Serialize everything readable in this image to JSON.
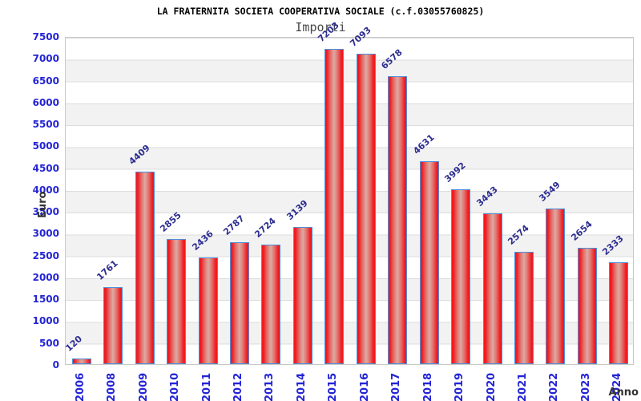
{
  "header": {
    "title": "LA FRATERNITA SOCIETA COOPERATIVA SOCIALE (c.f.03055760825)",
    "subtitle": "Importi"
  },
  "chart_data": {
    "type": "bar",
    "title": "LA FRATERNITA SOCIETA COOPERATIVA SOCIALE (c.f.03055760825)",
    "subtitle": "Importi",
    "xlabel": "Anno",
    "ylabel": "Euro",
    "categories": [
      "2006",
      "2008",
      "2009",
      "2010",
      "2011",
      "2012",
      "2013",
      "2014",
      "2015",
      "2016",
      "2017",
      "2018",
      "2019",
      "2020",
      "2021",
      "2022",
      "2023",
      "2024"
    ],
    "values": [
      120,
      1761,
      4409,
      2855,
      2436,
      2787,
      2724,
      3139,
      7203,
      7093,
      6578,
      4631,
      3992,
      3443,
      2574,
      3549,
      2654,
      2333
    ],
    "ylim": [
      0,
      7500
    ],
    "ytick_step": 500,
    "yticks": [
      0,
      500,
      1000,
      1500,
      2000,
      2500,
      3000,
      3500,
      4000,
      4500,
      5000,
      5500,
      6000,
      6500,
      7000,
      7500
    ],
    "grid": "horizontal-banded",
    "legend": "none",
    "colors": {
      "bar_edge_red": "#ee1b22",
      "bar_mid_red": "#e4716c",
      "bar_center_light": "#dcaaa3",
      "bar_border_blue": "#4e8fd9",
      "tick_label_blue": "#2424d6",
      "value_label_navy": "#2d2d91",
      "axis_title_gray": "#333333",
      "band_gray": "#f2f2f2",
      "band_white": "#ffffff",
      "grid_line": "#dcdcdc",
      "plot_border": "#c8c8c8",
      "title_black": "#000000",
      "subtitle_gray": "#4a4a4a"
    }
  }
}
